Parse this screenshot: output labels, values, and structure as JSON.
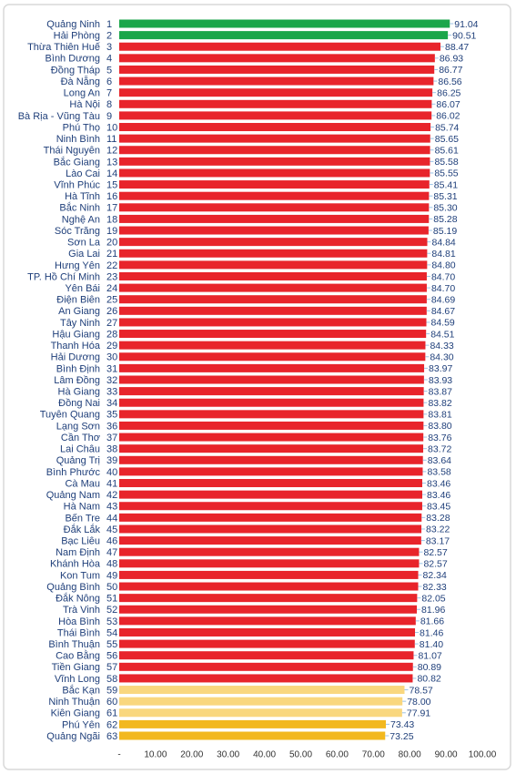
{
  "chart_data": {
    "type": "bar",
    "orientation": "horizontal",
    "categories": [
      "Quảng Ninh",
      "Hải Phòng",
      "Thừa Thiên Huế",
      "Bình Dương",
      "Đồng Tháp",
      "Đà Nẵng",
      "Long An",
      "Hà Nội",
      "Bà Rịa - Vũng Tàu",
      "Phú Thọ",
      "Ninh Bình",
      "Thái Nguyên",
      "Bắc Giang",
      "Lào Cai",
      "Vĩnh Phúc",
      "Hà Tĩnh",
      "Bắc Ninh",
      "Nghệ An",
      "Sóc Trăng",
      "Sơn La",
      "Gia Lai",
      "Hưng Yên",
      "TP. Hồ Chí Minh",
      "Yên Bái",
      "Điện Biên",
      "An Giang",
      "Tây Ninh",
      "Hậu Giang",
      "Thanh Hóa",
      "Hải Dương",
      "Bình Định",
      "Lâm Đồng",
      "Hà Giang",
      "Đồng Nai",
      "Tuyên Quang",
      "Lạng Sơn",
      "Cần Thơ",
      "Lai Châu",
      "Quảng Trị",
      "Bình Phước",
      "Cà Mau",
      "Quảng Nam",
      "Hà Nam",
      "Bến Tre",
      "Đắk Lắk",
      "Bạc Liêu",
      "Nam Định",
      "Khánh Hòa",
      "Kon Tum",
      "Quảng Bình",
      "Đắk Nông",
      "Trà Vinh",
      "Hòa Bình",
      "Thái Bình",
      "Bình Thuận",
      "Cao Bằng",
      "Tiền Giang",
      "Vĩnh Long",
      "Bắc Kạn",
      "Ninh Thuận",
      "Kiên Giang",
      "Phú Yên",
      "Quảng Ngãi"
    ],
    "ranks": [
      1,
      2,
      3,
      4,
      5,
      6,
      7,
      8,
      9,
      10,
      11,
      12,
      13,
      14,
      15,
      16,
      17,
      18,
      19,
      20,
      21,
      22,
      23,
      24,
      25,
      26,
      27,
      28,
      29,
      30,
      31,
      32,
      33,
      34,
      35,
      36,
      37,
      38,
      39,
      40,
      41,
      42,
      43,
      44,
      45,
      46,
      47,
      48,
      49,
      50,
      51,
      52,
      53,
      54,
      55,
      56,
      57,
      58,
      59,
      60,
      61,
      62,
      63
    ],
    "values": [
      91.04,
      90.51,
      88.47,
      86.93,
      86.77,
      86.56,
      86.25,
      86.07,
      86.02,
      85.74,
      85.65,
      85.61,
      85.58,
      85.55,
      85.41,
      85.31,
      85.3,
      85.28,
      85.19,
      84.84,
      84.81,
      84.8,
      84.7,
      84.7,
      84.69,
      84.67,
      84.59,
      84.51,
      84.33,
      84.3,
      83.97,
      83.93,
      83.87,
      83.82,
      83.81,
      83.8,
      83.76,
      83.72,
      83.64,
      83.58,
      83.46,
      83.46,
      83.45,
      83.28,
      83.22,
      83.17,
      82.57,
      82.57,
      82.34,
      82.33,
      82.05,
      81.96,
      81.66,
      81.46,
      81.4,
      81.07,
      80.89,
      80.82,
      78.57,
      78.0,
      77.91,
      73.43,
      73.25
    ],
    "value_labels": [
      "91.04",
      "90.51",
      "88.47",
      "86.93",
      "86.77",
      "86.56",
      "86.25",
      "86.07",
      "86.02",
      "85.74",
      "85.65",
      "85.61",
      "85.58",
      "85.55",
      "85.41",
      "85.31",
      "85.30",
      "85.28",
      "85.19",
      "84.84",
      "84.81",
      "84.80",
      "84.70",
      "84.70",
      "84.69",
      "84.67",
      "84.59",
      "84.51",
      "84.33",
      "84.30",
      "83.97",
      "83.93",
      "83.87",
      "83.82",
      "83.81",
      "83.80",
      "83.76",
      "83.72",
      "83.64",
      "83.58",
      "83.46",
      "83.46",
      "83.45",
      "83.28",
      "83.22",
      "83.17",
      "82.57",
      "82.57",
      "82.34",
      "82.33",
      "82.05",
      "81.96",
      "81.66",
      "81.46",
      "81.40",
      "81.07",
      "80.89",
      "80.82",
      "78.57",
      "78.00",
      "77.91",
      "73.43",
      "73.25"
    ],
    "colors": [
      "#1aa64a",
      "#1aa64a",
      "#e8242b",
      "#e8242b",
      "#e8242b",
      "#e8242b",
      "#e8242b",
      "#e8242b",
      "#e8242b",
      "#e8242b",
      "#e8242b",
      "#e8242b",
      "#e8242b",
      "#e8242b",
      "#e8242b",
      "#e8242b",
      "#e8242b",
      "#e8242b",
      "#e8242b",
      "#e8242b",
      "#e8242b",
      "#e8242b",
      "#e8242b",
      "#e8242b",
      "#e8242b",
      "#e8242b",
      "#e8242b",
      "#e8242b",
      "#e8242b",
      "#e8242b",
      "#e8242b",
      "#e8242b",
      "#e8242b",
      "#e8242b",
      "#e8242b",
      "#e8242b",
      "#e8242b",
      "#e8242b",
      "#e8242b",
      "#e8242b",
      "#e8242b",
      "#e8242b",
      "#e8242b",
      "#e8242b",
      "#e8242b",
      "#e8242b",
      "#e8242b",
      "#e8242b",
      "#e8242b",
      "#e8242b",
      "#e8242b",
      "#e8242b",
      "#e8242b",
      "#e8242b",
      "#e8242b",
      "#e8242b",
      "#e8242b",
      "#e8242b",
      "#f9d77e",
      "#f9d77e",
      "#f9d77e",
      "#f2b81f",
      "#f2b81f"
    ],
    "xlim": [
      0,
      100
    ],
    "xticks": [
      {
        "value": 0,
        "label": "-"
      },
      {
        "value": 10,
        "label": "10.00"
      },
      {
        "value": 20,
        "label": "20.00"
      },
      {
        "value": 30,
        "label": "30.00"
      },
      {
        "value": 40,
        "label": "40.00"
      },
      {
        "value": 50,
        "label": "50.00"
      },
      {
        "value": 60,
        "label": "60.00"
      },
      {
        "value": 70,
        "label": "70.00"
      },
      {
        "value": 80,
        "label": "80.00"
      },
      {
        "value": 90,
        "label": "90.00"
      },
      {
        "value": 100,
        "label": "100.00"
      }
    ]
  }
}
